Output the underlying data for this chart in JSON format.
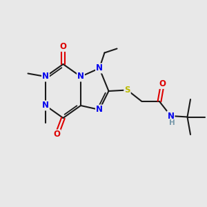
{
  "bg_color": "#e8e8e8",
  "bond_color": "#1a1a1a",
  "N_color": "#0000ee",
  "O_color": "#dd0000",
  "S_color": "#bbbb00",
  "NH_color": "#7799aa",
  "lw": 1.5,
  "fs": 8.5,
  "xlim": [
    0,
    10
  ],
  "ylim": [
    0,
    10
  ]
}
